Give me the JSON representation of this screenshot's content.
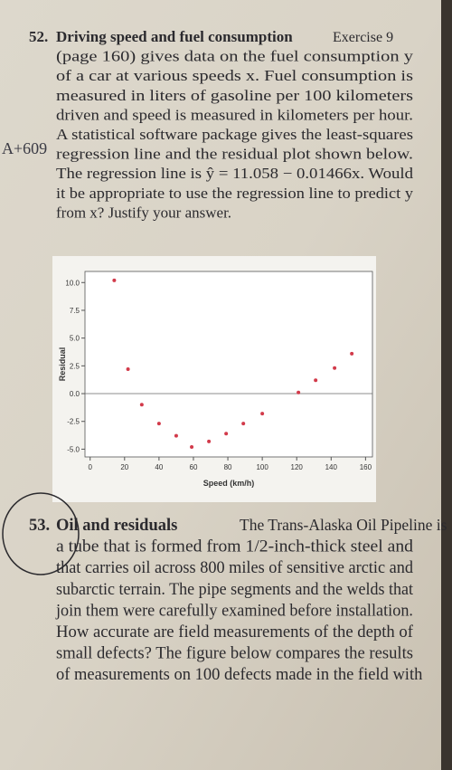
{
  "margin_note": "A+609",
  "problem_52": {
    "number": "52.",
    "title": "Driving speed and fuel consumption",
    "lead": "Exercise 9",
    "lines": [
      "(page 160) gives data on the fuel consumption y",
      "of a car at various speeds x. Fuel consumption is",
      "measured in liters of gasoline per 100 kilometers",
      "driven and speed is measured in kilometers per hour.",
      "A statistical software package gives the least-squares",
      "regression line and the residual plot shown below.",
      "The regression line is ŷ = 11.058 − 0.01466x. Would",
      "it be appropriate to use the regression line to predict y",
      "from x? Justify your answer."
    ]
  },
  "chart_data": {
    "type": "scatter",
    "x_label": "Speed (km/h)",
    "y_label": "Residual",
    "color": "#d23a4a",
    "x": [
      14,
      22,
      30,
      40,
      50,
      59,
      69,
      79,
      89,
      100,
      121,
      131,
      142,
      152
    ],
    "values": [
      10.2,
      2.2,
      -1.0,
      -2.7,
      -3.8,
      -4.8,
      -4.3,
      -3.6,
      -2.7,
      -1.8,
      0.1,
      1.2,
      2.3,
      3.6
    ],
    "xlim": [
      -3,
      164
    ],
    "ylim": [
      -5.7,
      11
    ],
    "xticks": [
      0,
      20,
      40,
      60,
      80,
      100,
      120,
      140,
      160
    ],
    "yticks": [
      {
        "value": -5,
        "label": "-5.0"
      },
      {
        "value": -2.5,
        "label": "-2.5"
      },
      {
        "value": 0,
        "label": "0.0"
      },
      {
        "value": 2.5,
        "label": "2.5"
      },
      {
        "value": 5,
        "label": "5.0"
      },
      {
        "value": 7.5,
        "label": "7.5"
      },
      {
        "value": 10,
        "label": "10.0"
      }
    ]
  },
  "problem_53": {
    "number": "53.",
    "title": "Oil and residuals",
    "lead": "The Trans-Alaska Oil Pipeline is",
    "lines": [
      "a tube that is formed from 1/2-inch-thick steel and",
      "that carries oil across 800 miles of sensitive arctic and",
      "subarctic terrain. The pipe segments and the welds that",
      "join them were carefully examined before installation.",
      "How accurate are field measurements of the depth of",
      "small defects? The figure below compares the results",
      "of measurements on 100 defects made in the field with"
    ]
  }
}
